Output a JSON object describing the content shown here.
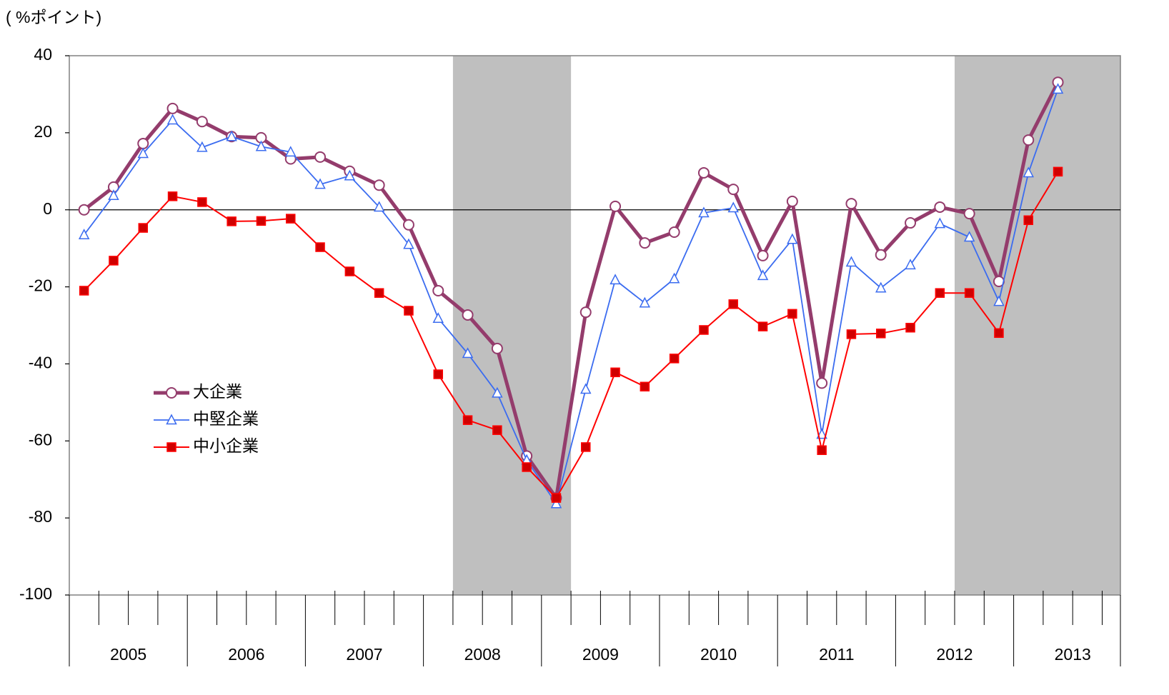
{
  "chart_data": {
    "type": "line",
    "y_label": "( %ポイント)",
    "year_labels": [
      "2005",
      "2006",
      "2007",
      "2008",
      "2009",
      "2010",
      "2011",
      "2012",
      "2013"
    ],
    "shaded_quarters": [
      [
        13,
        17
      ],
      [
        30,
        36
      ]
    ],
    "ylim": [
      -100,
      40
    ],
    "yticks": [
      -100,
      -80,
      -60,
      -40,
      -20,
      0,
      20,
      40
    ],
    "legend": "lower-left",
    "series": [
      {
        "name": "大企業",
        "color": "#943c6c",
        "marker": "circle",
        "values": [
          0,
          5.9,
          17.2,
          26.3,
          22.9,
          19,
          18.7,
          13.2,
          13.7,
          10,
          6.4,
          -3.9,
          -21,
          -27.3,
          -36,
          -63.9,
          -74.8,
          -26.6,
          0.9,
          -8.6,
          -5.8,
          9.6,
          5.3,
          -11.9,
          2.2,
          -45,
          1.6,
          -11.7,
          -3.4,
          0.7,
          -1,
          -18.6,
          18.1,
          33.1
        ]
      },
      {
        "name": "中堅企業",
        "color": "#3b6cf0",
        "marker": "triangle",
        "values": [
          -6.5,
          3.7,
          14.6,
          23.3,
          16.2,
          19,
          16.4,
          15,
          6.6,
          8.8,
          0.7,
          -9,
          -28.2,
          -37.3,
          -47.6,
          -65,
          -76.3,
          -46.6,
          -18.2,
          -24.2,
          -17.9,
          -0.8,
          0.5,
          -17.1,
          -7.7,
          -58.3,
          -13.6,
          -20.3,
          -14.3,
          -3.6,
          -7.1,
          -23.8,
          9.6,
          31.3
        ]
      },
      {
        "name": "中小企業",
        "color": "#ff0000",
        "marker": "square",
        "values": [
          -21,
          -13.2,
          -4.7,
          3.5,
          2,
          -3,
          -2.9,
          -2.3,
          -9.7,
          -16,
          -21.6,
          -26.2,
          -42.7,
          -54.6,
          -57.2,
          -66.8,
          -74.8,
          -61.6,
          -42.2,
          -45.9,
          -38.6,
          -31.2,
          -24.5,
          -30.3,
          -27,
          -62.4,
          -32.3,
          -32.1,
          -30.6,
          -21.6,
          -21.6,
          -32,
          -2.7,
          9.9
        ]
      }
    ]
  }
}
